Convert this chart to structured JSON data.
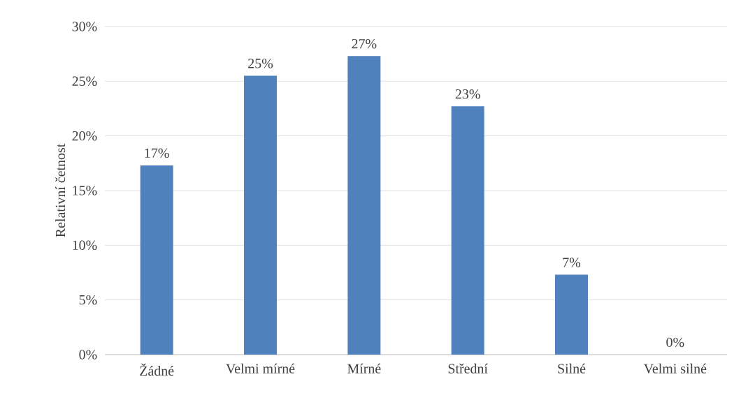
{
  "chart_data": {
    "type": "bar",
    "ylabel": "Relativní četnost",
    "categories": [
      "Žádné",
      "Velmi mírné",
      "Mírné",
      "Střední",
      "Silné",
      "Velmi silné"
    ],
    "values": [
      17.3,
      25.5,
      27.3,
      22.7,
      7.3,
      0
    ],
    "value_labels": [
      "17%",
      "25%",
      "27%",
      "23%",
      "7%",
      "0%"
    ],
    "color": "#4f81bd",
    "ylim": [
      0,
      30
    ],
    "yticks": [
      {
        "value": 0,
        "label": "0%"
      },
      {
        "value": 5,
        "label": "5%"
      },
      {
        "value": 10,
        "label": "10%"
      },
      {
        "value": 15,
        "label": "15%"
      },
      {
        "value": 20,
        "label": "20%"
      },
      {
        "value": 25,
        "label": "25%"
      },
      {
        "value": 30,
        "label": "30%"
      }
    ],
    "grid": "y"
  }
}
